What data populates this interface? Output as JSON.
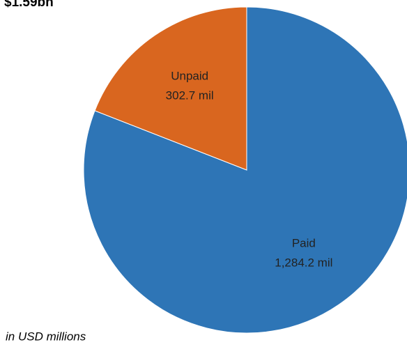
{
  "chart_data": {
    "type": "pie",
    "title": "$1.59bn",
    "categories": [
      "Paid",
      "Unpaid"
    ],
    "values": [
      1284.2,
      302.7
    ],
    "value_labels": [
      "1,284.2 mil",
      "302.7 mil"
    ],
    "colors": [
      "#2e75b6",
      "#d9661f"
    ],
    "note": "in USD millions"
  }
}
